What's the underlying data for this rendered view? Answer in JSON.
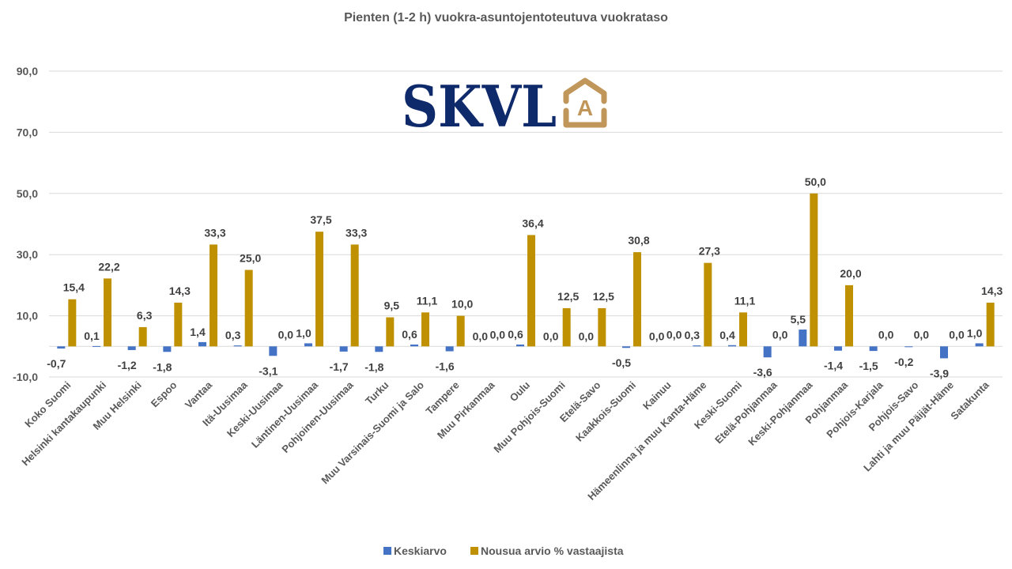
{
  "chart_data": {
    "type": "bar",
    "title": "Pienten (1-2 h) vuokra-asuntojentoteutuva vuokrataso",
    "xlabel": "",
    "ylabel": "",
    "ylim": [
      -10,
      90
    ],
    "yticks": [
      -10,
      10,
      30,
      50,
      70,
      90
    ],
    "ytick_labels": [
      "-10,0",
      "10,0",
      "30,0",
      "50,0",
      "70,0",
      "90,0"
    ],
    "grid": true,
    "legend_position": "bottom",
    "categories": [
      "Koko Suomi",
      "Helsinki kantakaupunki",
      "Muu Helsinki",
      "Espoo",
      "Vantaa",
      "Itä-Uusimaa",
      "Keski-Uusimaa",
      "Läntinen-Uusimaa",
      "Pohjoinen-Uusimaa",
      "Turku",
      "Muu Varsinais-Suomi ja Salo",
      "Tampere",
      "Muu Pirkanmaa",
      "Oulu",
      "Muu Pohjois-Suomi",
      "Etelä-Savo",
      "Kaakkois-Suomi",
      "Kainuu",
      "Hämeenlinna ja muu Kanta-Häme",
      "Keski-Suomi",
      "Etelä-Pohjanmaa",
      "Keski-Pohjanmaa",
      "Pohjanmaa",
      "Pohjois-Karjala",
      "Pohjois-Savo",
      "Lahti ja muu Päijät-Häme",
      "Satakunta"
    ],
    "series": [
      {
        "name": "Keskiarvo",
        "color": "#4472c4",
        "values": [
          -0.7,
          0.1,
          -1.2,
          -1.8,
          1.4,
          0.3,
          -3.1,
          1.0,
          -1.7,
          -1.8,
          0.6,
          -1.6,
          0.0,
          0.6,
          0.0,
          0.0,
          -0.5,
          0.0,
          0.3,
          0.4,
          -3.6,
          5.5,
          -1.4,
          -1.5,
          -0.2,
          -3.9,
          1.0
        ],
        "labels": [
          "-0,7",
          "0,1",
          "-1,2",
          "-1,8",
          "1,4",
          "0,3",
          "-3,1",
          "1,0",
          "-1,7",
          "-1,8",
          "0,6",
          "-1,6",
          "0,0",
          "0,6",
          "0,0",
          "0,0",
          "-0,5",
          "0,0",
          "0,3",
          "0,4",
          "-3,6",
          "5,5",
          "-1,4",
          "-1,5",
          "-0,2",
          "-3,9",
          "1,0"
        ]
      },
      {
        "name": "Nousua arvio % vastaajista",
        "color": "#bf9000",
        "values": [
          15.4,
          22.2,
          6.3,
          14.3,
          33.3,
          25.0,
          0.0,
          37.5,
          33.3,
          9.5,
          11.1,
          10.0,
          0.0,
          36.4,
          12.5,
          12.5,
          30.8,
          0.0,
          27.3,
          11.1,
          0.0,
          50.0,
          20.0,
          0.0,
          0.0,
          0.0,
          14.3
        ],
        "labels": [
          "15,4",
          "22,2",
          "6,3",
          "14,3",
          "33,3",
          "25,0",
          "0,0",
          "37,5",
          "33,3",
          "9,5",
          "11,1",
          "10,0",
          "0,0",
          "36,4",
          "12,5",
          "12,5",
          "30,8",
          "0,0",
          "27,3",
          "11,1",
          "0,0",
          "50,0",
          "20,0",
          "0,0",
          "0,0",
          "0,0",
          "14,3"
        ]
      }
    ]
  },
  "logo": {
    "text": "SKVL",
    "badge_letter": "A",
    "text_color": "#0f2a6b",
    "badge_color": "#c0965a"
  }
}
